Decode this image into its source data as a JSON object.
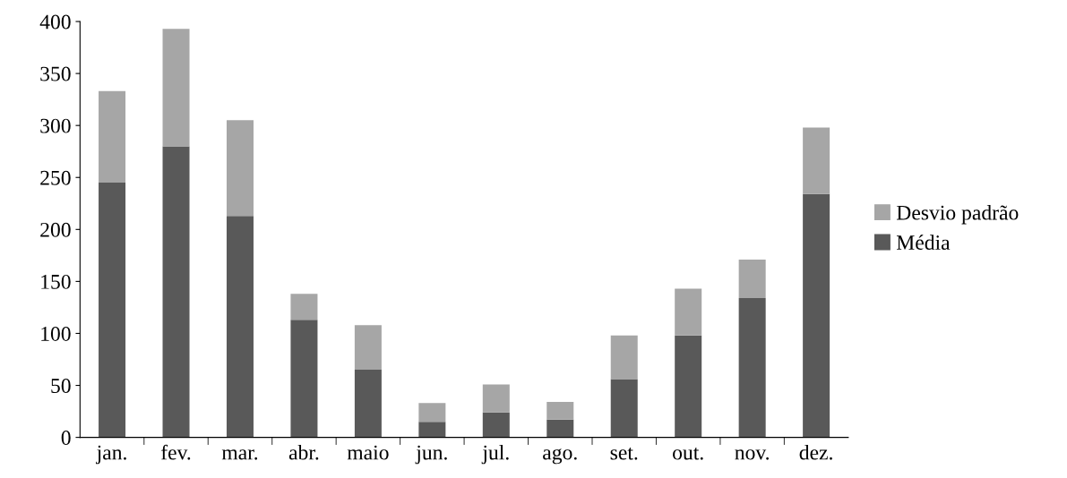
{
  "chart_data": {
    "type": "bar",
    "stacked": true,
    "categories": [
      "jan.",
      "fev.",
      "mar.",
      "abr.",
      "maio",
      "jun.",
      "jul.",
      "ago.",
      "set.",
      "out.",
      "nov.",
      "dez."
    ],
    "series": [
      {
        "name": "Média",
        "color": "#595959",
        "values": [
          245,
          280,
          213,
          113,
          65,
          15,
          24,
          17,
          56,
          98,
          134,
          234
        ]
      },
      {
        "name": "Desvio padrão",
        "color": "#a6a6a6",
        "values": [
          88,
          113,
          92,
          25,
          43,
          18,
          27,
          17,
          42,
          45,
          37,
          64
        ]
      }
    ],
    "ylim": [
      0,
      400
    ],
    "yticks": [
      0,
      50,
      100,
      150,
      200,
      250,
      300,
      350,
      400
    ],
    "grid": false,
    "legend": "right"
  }
}
